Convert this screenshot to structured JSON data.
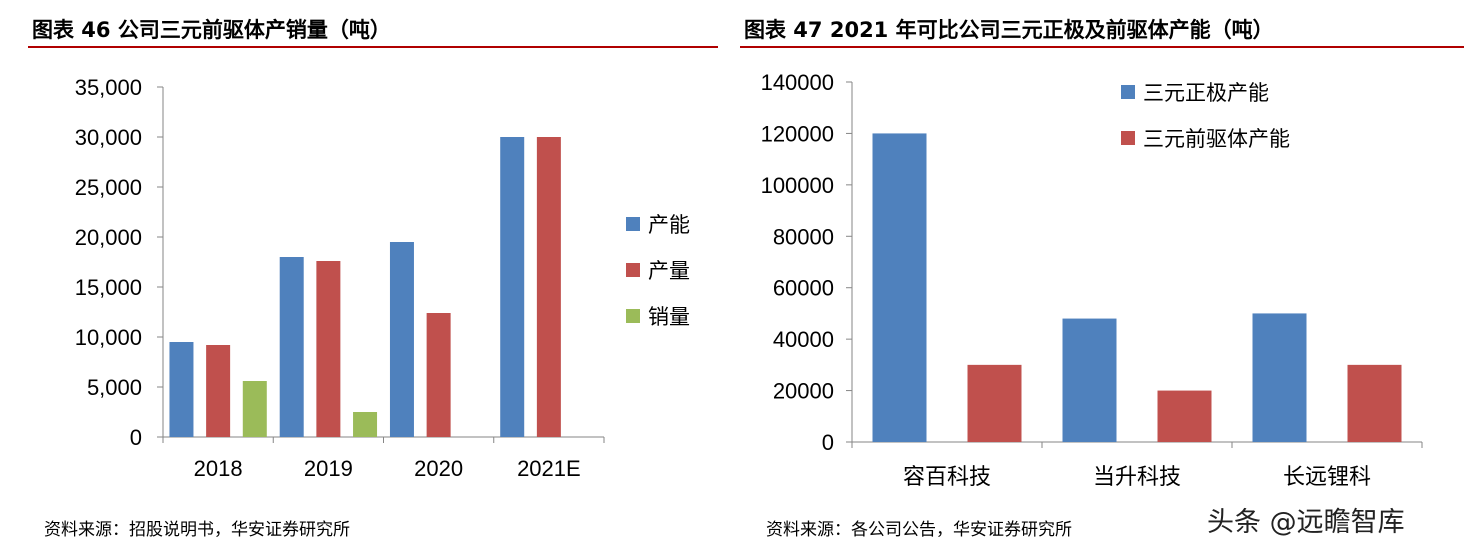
{
  "panels": {
    "left": {
      "title": "图表 46 公司三元前驱体产销量（吨）",
      "source": "资料来源：招股说明书，华安证券研究所"
    },
    "right": {
      "title": "图表 47 2021 年可比公司三元正极及前驱体产能（吨）",
      "source": "资料来源：各公司公告，华安证券研究所"
    }
  },
  "watermark": "头条 @远瞻智库",
  "colors": {
    "blue": "#4f81bd",
    "red": "#c0504d",
    "green": "#9bbb59",
    "axis": "#868686"
  },
  "chart_data": [
    {
      "type": "bar",
      "categories": [
        "2018",
        "2019",
        "2020",
        "2021E"
      ],
      "series": [
        {
          "name": "产能",
          "values": [
            9500,
            18000,
            19500,
            30000
          ],
          "color": "#4f81bd"
        },
        {
          "name": "产量",
          "values": [
            9200,
            17600,
            12400,
            30000
          ],
          "color": "#c0504d"
        },
        {
          "name": "销量",
          "values": [
            5600,
            2500,
            null,
            null
          ],
          "color": "#9bbb59"
        }
      ],
      "ylim": [
        0,
        35000
      ],
      "yticks": [
        0,
        5000,
        10000,
        15000,
        20000,
        25000,
        30000,
        35000
      ],
      "ytick_labels": [
        "0",
        "5,000",
        "10,000",
        "15,000",
        "20,000",
        "25,000",
        "30,000",
        "35,000"
      ],
      "grid": false,
      "legend_position": "right"
    },
    {
      "type": "bar",
      "categories": [
        "容百科技",
        "当升科技",
        "长远锂科"
      ],
      "series": [
        {
          "name": "三元正极产能",
          "values": [
            120000,
            48000,
            50000
          ],
          "color": "#4f81bd"
        },
        {
          "name": "三元前驱体产能",
          "values": [
            30000,
            20000,
            30000
          ],
          "color": "#c0504d"
        }
      ],
      "ylim": [
        0,
        140000
      ],
      "yticks": [
        0,
        20000,
        40000,
        60000,
        80000,
        100000,
        120000,
        140000
      ],
      "ytick_labels": [
        "0",
        "20000",
        "40000",
        "60000",
        "80000",
        "100000",
        "120000",
        "140000"
      ],
      "grid": false,
      "legend_position": "top-right"
    }
  ]
}
